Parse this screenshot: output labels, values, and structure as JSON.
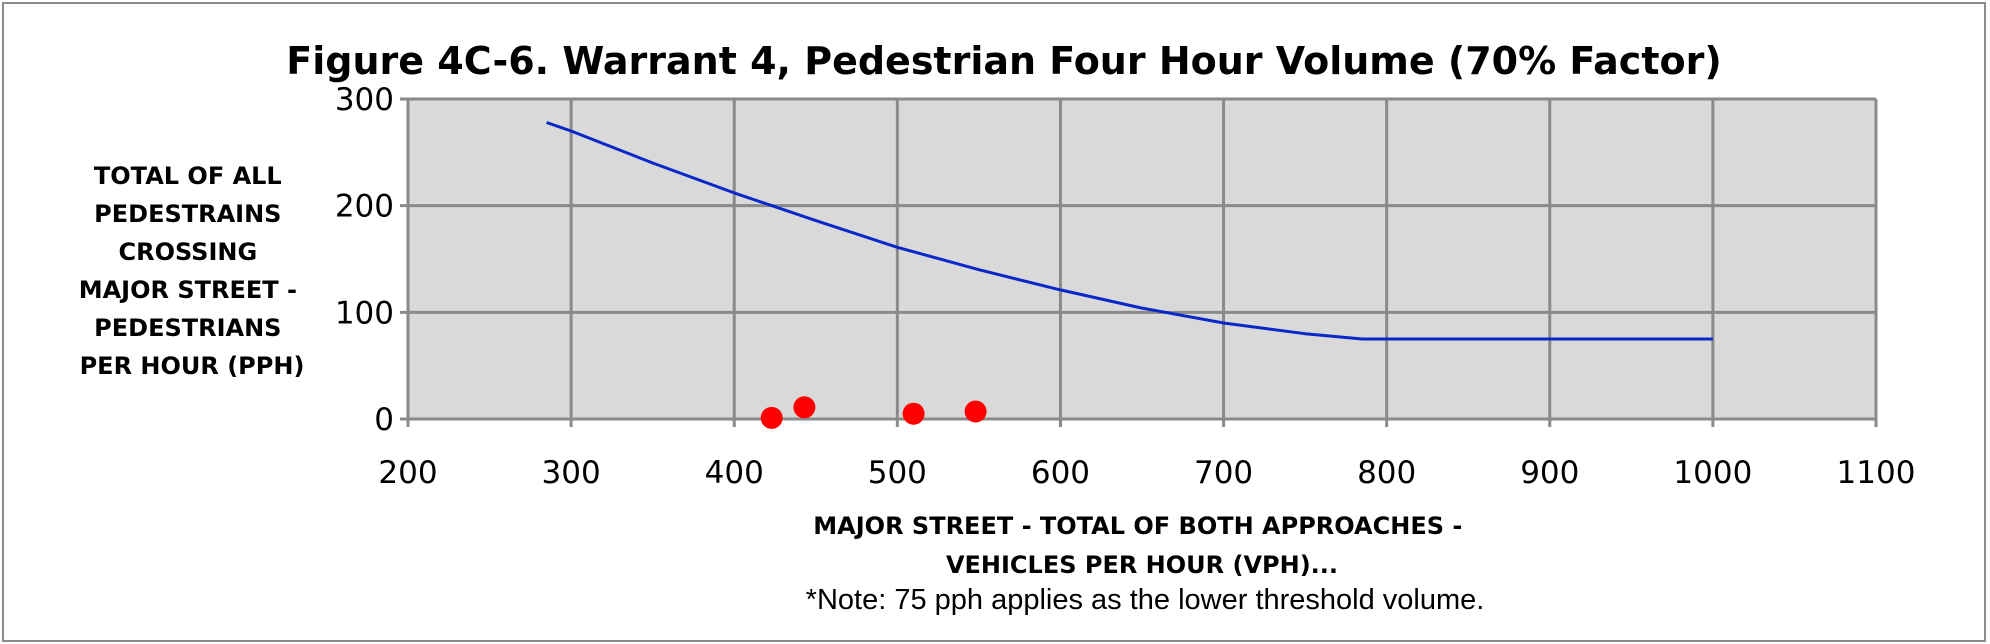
{
  "chart_data": {
    "type": "scatter",
    "title": "Figure 4C-6. Warrant 4, Pedestrian Four Hour Volume (70% Factor)",
    "ylabel_lines": [
      "TOTAL OF ALL",
      "PEDESTRAINS",
      "CROSSING",
      "MAJOR STREET -",
      "PEDESTRIANS",
      "PER HOUR (PPH)"
    ],
    "xlabel_lines": [
      "MAJOR STREET - TOTAL OF BOTH APPROACHES -",
      "VEHICLES PER HOUR (VPH)..."
    ],
    "note": "*Note: 75 pph applies as the lower threshold volume.",
    "xlim": [
      200,
      1100
    ],
    "ylim": [
      0,
      300
    ],
    "x_ticks": [
      200,
      300,
      400,
      500,
      600,
      700,
      800,
      900,
      1000,
      1100
    ],
    "y_ticks": [
      0,
      100,
      200,
      300
    ],
    "x_tick_labels": [
      "200",
      "300",
      "400",
      "500",
      "600",
      "700",
      "800",
      "900",
      "1000",
      "1100"
    ],
    "y_tick_labels": [
      "0",
      "100",
      "200",
      "300"
    ],
    "grid": true,
    "plot_background": "#d9d9d9",
    "series": [
      {
        "kind": "line",
        "color": "#0a28c8",
        "x": [
          285,
          300,
          350,
          400,
          450,
          500,
          550,
          600,
          650,
          700,
          750,
          785,
          790,
          800,
          1000
        ],
        "y": [
          278,
          270,
          240,
          212,
          186,
          161,
          140,
          121,
          104,
          90,
          80,
          75,
          75,
          75,
          75
        ]
      },
      {
        "kind": "scatter",
        "color": "#ff0000",
        "x": [
          423,
          443,
          510,
          548
        ],
        "y": [
          1,
          11,
          5,
          7
        ]
      }
    ]
  }
}
